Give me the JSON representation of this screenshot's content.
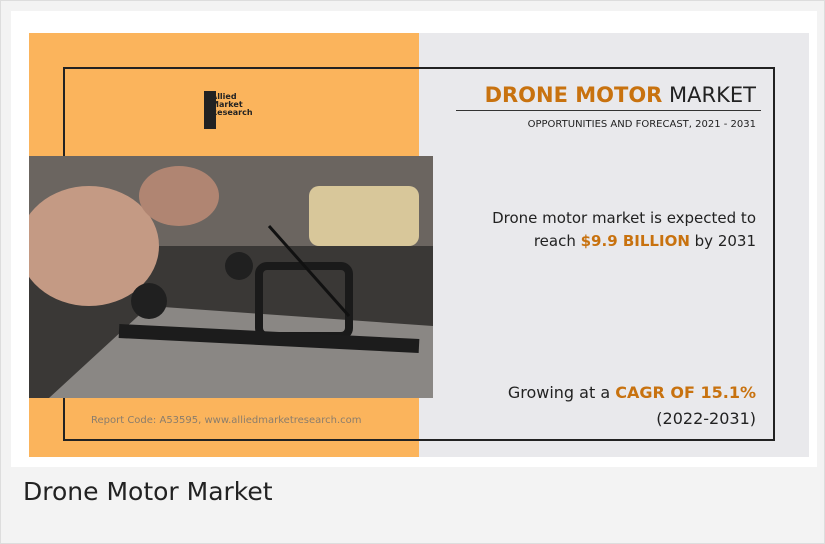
{
  "infographic": {
    "logo": [
      "Allied",
      "Market",
      "Research"
    ],
    "title": {
      "highlight": "DRONE MOTOR",
      "rest": "MARKET"
    },
    "subtitle": "OPPORTUNITIES AND FORECAST, 2021 - 2031",
    "forecast": {
      "line1": "Drone motor market is expected to",
      "pre": "reach",
      "highlight": "$9.9 BILLION",
      "post": "by 2031"
    },
    "growth": {
      "pre": "Growing at a",
      "highlight": "CAGR OF 15.1%",
      "period": "(2022-2031)"
    },
    "report_code": "Report Code: A53595, www.alliedmarketresearch.com"
  },
  "caption": "Drone Motor Market"
}
